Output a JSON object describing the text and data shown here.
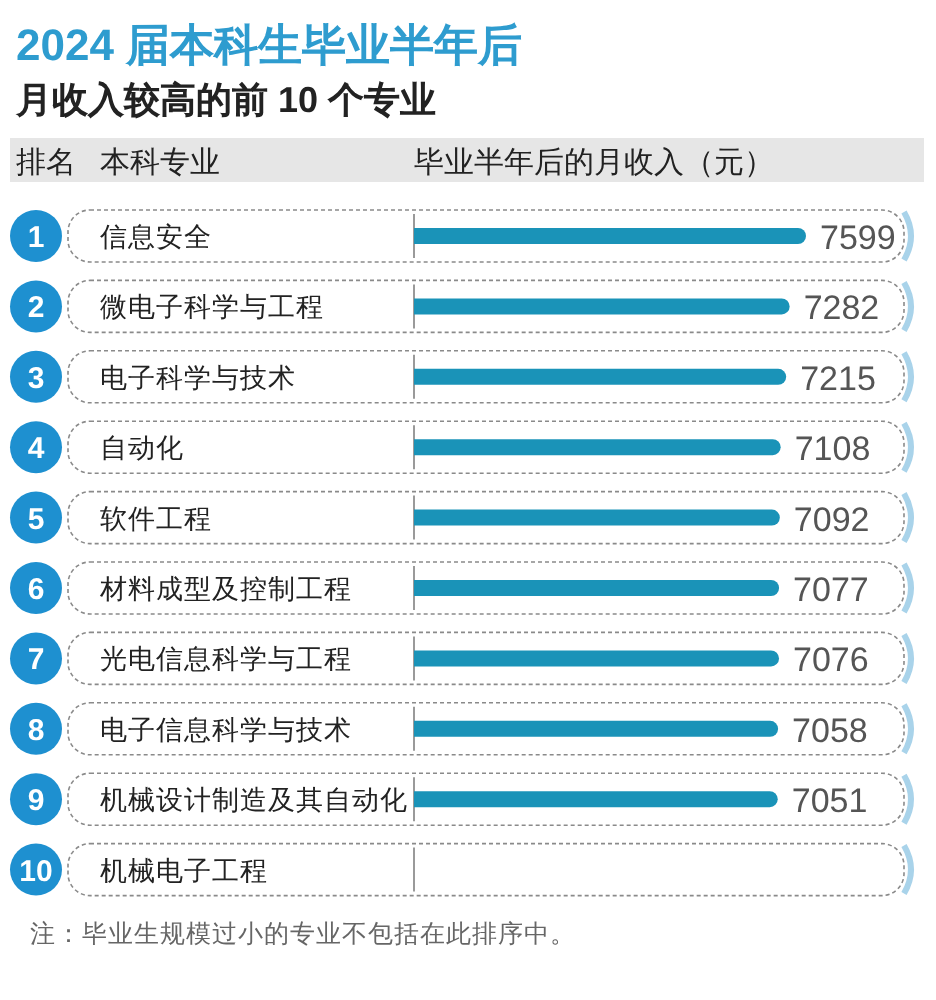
{
  "chart_data": {
    "type": "bar",
    "orientation": "horizontal",
    "title": "2024 届本科生毕业半年后",
    "subtitle": "月收入较高的前 10 个专业",
    "xlabel": "毕业半年后的月收入（元）",
    "ylabel": "本科专业",
    "categories": [
      "信息安全",
      "微电子科学与工程",
      "电子科学与技术",
      "自动化",
      "软件工程",
      "材料成型及控制工程",
      "光电信息科学与工程",
      "电子信息科学与技术",
      "机械设计制造及其自动化",
      "机械电子工程"
    ],
    "values": [
      7599,
      7282,
      7215,
      7108,
      7092,
      7077,
      7076,
      7058,
      7051,
      null
    ],
    "color": "#1a93b8",
    "data_labels": true,
    "annotations": [
      "排名",
      "1",
      "2",
      "3",
      "4",
      "5",
      "6",
      "7",
      "8",
      "9",
      "10",
      "注：毕业生规模过小的专业不包括在此排序中。"
    ]
  }
}
